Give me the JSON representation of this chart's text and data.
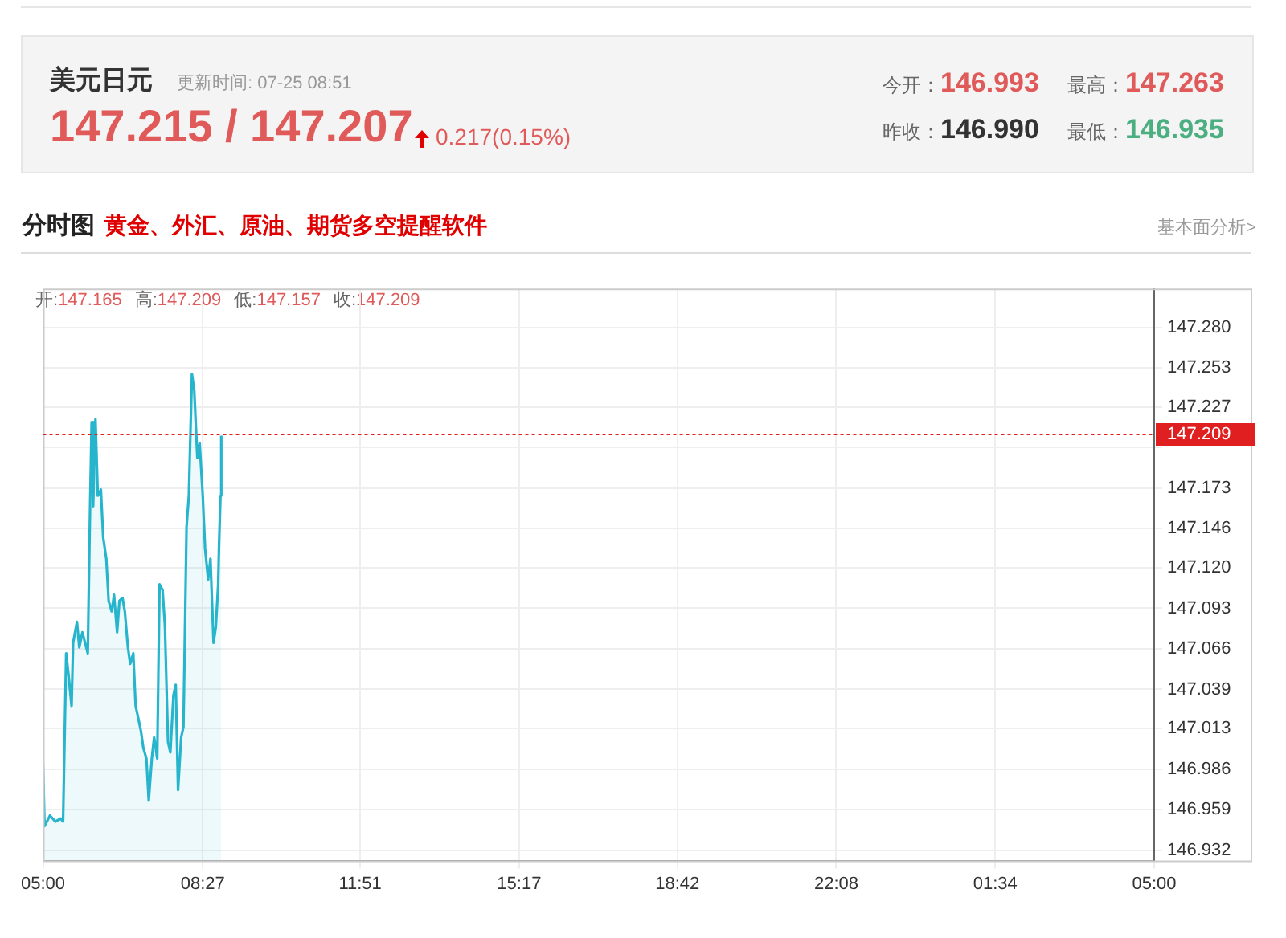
{
  "chart_data": {
    "type": "area",
    "title": "美元日元",
    "annotations": [
      "更新时间: 07-25 08:51",
      "147.215 / 147.207",
      "0.217(0.15%)",
      "今开：146.993",
      "最高：147.263",
      "昨收：146.990",
      "最低：146.935",
      "分时图",
      "黄金、外汇、原油、期货多空提醒软件",
      "基本面分析>",
      "开:147.165",
      "高:147.209",
      "低:147.157",
      "收:147.209"
    ],
    "x": [
      "--07-25T05:00",
      "--07-25T05:02",
      "--07-25T05:09",
      "--07-25T05:16",
      "--07-25T05:23",
      "--07-25T05:26",
      "--07-25T05:30",
      "--07-25T05:33",
      "--07-25T05:37",
      "--07-25T05:39",
      "--07-25T05:44",
      "--07-25T05:47",
      "--07-25T05:51",
      "--07-25T05:58",
      "--07-25T06:01",
      "--07-25T06:03",
      "--07-25T06:05",
      "--07-25T06:08",
      "--07-25T06:11",
      "--07-25T06:15",
      "--07-25T06:18",
      "--07-25T06:22",
      "--07-25T06:25",
      "--07-25T06:29",
      "--07-25T06:32",
      "--07-25T06:36",
      "--07-25T06:39",
      "--07-25T06:43",
      "--07-25T06:46",
      "--07-25T06:50",
      "--07-25T06:53",
      "--07-25T06:57",
      "--07-25T07:00",
      "--07-25T07:03",
      "--07-25T07:07",
      "--07-25T07:10",
      "--07-25T07:14",
      "--07-25T07:17",
      "--07-25T07:21",
      "--07-25T07:24",
      "--07-25T07:28",
      "--07-25T07:31",
      "--07-25T07:35",
      "--07-25T07:38",
      "--07-25T07:42",
      "--07-25T07:45",
      "--07-25T07:49",
      "--07-25T07:52",
      "--07-25T07:55",
      "--07-25T07:59",
      "--07-25T08:02",
      "--07-25T08:06",
      "--07-25T08:09",
      "--07-25T08:13",
      "--07-25T08:16",
      "--07-25T08:20",
      "--07-25T08:23",
      "--07-25T08:27",
      "--07-25T08:30",
      "--07-25T08:34",
      "--07-25T08:37",
      "--07-25T08:41",
      "--07-25T08:44",
      "--07-25T08:47",
      "--07-25T08:48",
      "--07-25T08:50",
      "--07-25T08:51"
    ],
    "series": [
      {
        "color": "#26b5cc",
        "values": [
          146.99,
          146.948,
          146.955,
          146.951,
          146.953,
          146.951,
          147.063,
          147.049,
          147.028,
          147.07,
          147.084,
          147.067,
          147.077,
          147.063,
          147.161,
          147.217,
          147.161,
          147.219,
          147.168,
          147.172,
          147.14,
          147.126,
          147.098,
          147.091,
          147.102,
          147.077,
          147.098,
          147.1,
          147.091,
          147.067,
          147.056,
          147.063,
          147.028,
          147.021,
          147.011,
          147.0,
          146.993,
          146.965,
          146.993,
          147.007,
          146.993,
          147.109,
          147.105,
          147.081,
          147.004,
          146.997,
          147.035,
          147.042,
          146.972,
          147.007,
          147.014,
          147.147,
          147.168,
          147.249,
          147.238,
          147.193,
          147.203,
          147.168,
          147.133,
          147.112,
          147.126,
          147.07,
          147.081,
          147.109,
          147.133,
          147.168,
          147.208
        ]
      }
    ],
    "xlim": [
      "--07-25T05:00",
      "--07-26T05:00"
    ],
    "xticks": [
      {
        "value": "--07-25T05:00",
        "label": "05:00"
      },
      {
        "value": "--07-25T08:27",
        "label": "08:27"
      },
      {
        "value": "--07-25T11:51",
        "label": "11:51"
      },
      {
        "value": "--07-25T15:17",
        "label": "15:17"
      },
      {
        "value": "--07-25T18:42",
        "label": "18:42"
      },
      {
        "value": "--07-25T22:08",
        "label": "22:08"
      },
      {
        "value": "--07-26T01:34",
        "label": "01:34"
      },
      {
        "value": "--07-26T05:00",
        "label": "05:00"
      }
    ],
    "ylim": [
      146.925,
      147.306
    ],
    "yticks": [
      {
        "value": 147.28,
        "label": "147.280"
      },
      147.253,
      147.227,
      {
        "value": 147.2,
        "label": null
      },
      147.173,
      147.146,
      {
        "value": 147.12,
        "label": "147.120"
      },
      147.093,
      147.066,
      147.039,
      147.013,
      146.986,
      146.959,
      146.932
    ],
    "ref_lines": [
      {
        "axis": "y",
        "value": 147.209,
        "label": "147.209",
        "color": "#e02020",
        "line_style": "dotted"
      }
    ],
    "grid": true,
    "legend": false,
    "marker": "none",
    "line_style": "solid"
  }
}
